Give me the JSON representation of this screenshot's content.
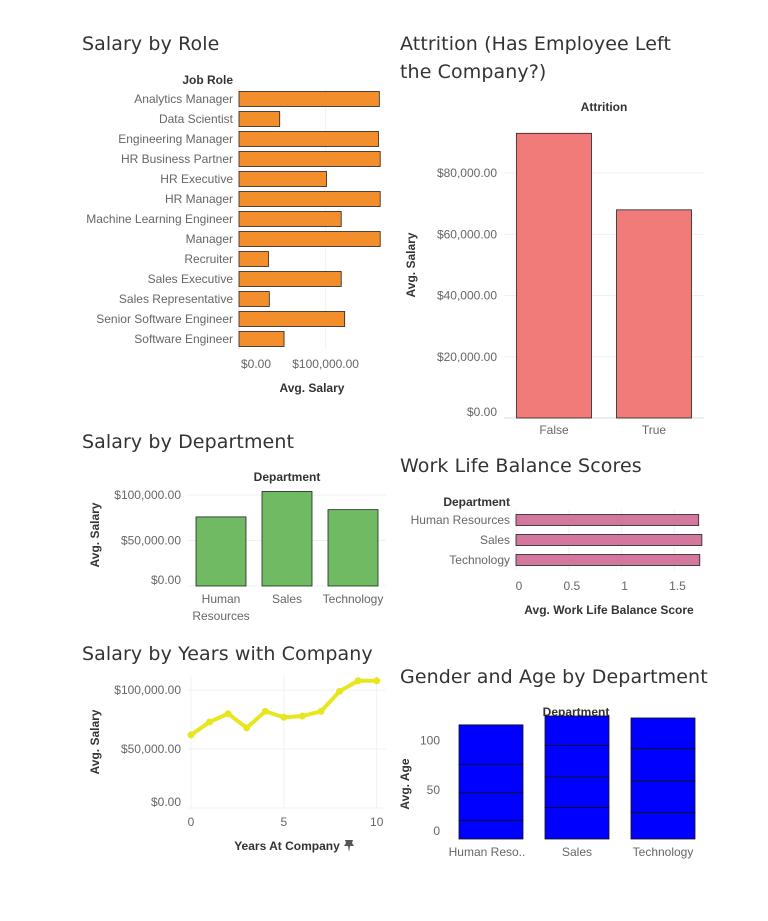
{
  "chart_data": [
    {
      "id": "role",
      "type": "bar",
      "orientation": "horizontal",
      "title": "Salary by Role",
      "header": "Job Role",
      "xlabel": "Avg. Salary",
      "categories": [
        "Analytics Manager",
        "Data Scientist",
        "Engineering Manager",
        "HR Business Partner",
        "HR Executive",
        "HR Manager",
        "Machine Learning Engineer",
        "Manager",
        "Recruiter",
        "Sales Executive",
        "Sales Representative",
        "Senior Software Engineer",
        "Software Engineer"
      ],
      "values": [
        162000,
        47000,
        161000,
        163000,
        101000,
        163000,
        118000,
        163000,
        34000,
        118000,
        35000,
        122000,
        52000
      ],
      "xlim": [
        0,
        172000
      ],
      "ticks": [
        0,
        100000
      ],
      "tick_labels": [
        "$0.00",
        "$100,000.00"
      ],
      "color": "#f28e2b"
    },
    {
      "id": "attrition",
      "type": "bar",
      "title": "Attrition (Has Employee Left the Company?)",
      "header": "Attrition",
      "ylabel": "Avg. Salary",
      "categories": [
        "False",
        "True"
      ],
      "values": [
        93000,
        68000
      ],
      "ylim": [
        0,
        98000
      ],
      "ticks": [
        0,
        20000,
        40000,
        60000,
        80000
      ],
      "tick_labels": [
        "$0.00",
        "$20,000.00",
        "$40,000.00",
        "$60,000.00",
        "$80,000.00"
      ],
      "color": "#f07b78"
    },
    {
      "id": "dept",
      "type": "bar",
      "title": "Salary by Department",
      "header": "Department",
      "ylabel": "Avg. Salary",
      "categories": [
        "Human Resources",
        "Sales",
        "Technology"
      ],
      "values": [
        76000,
        104000,
        84000
      ],
      "ylim": [
        0,
        110000
      ],
      "ticks": [
        0,
        50000,
        100000
      ],
      "tick_labels": [
        "$0.00",
        "$50,000.00",
        "$100,000.00"
      ],
      "color": "#6fba62"
    },
    {
      "id": "wlb",
      "type": "bar",
      "orientation": "horizontal",
      "title": "Work Life Balance Scores",
      "header": "Department",
      "xlabel": "Avg. Work Life Balance Score",
      "categories": [
        "Human Resources",
        "Sales",
        "Technology"
      ],
      "values": [
        1.73,
        1.76,
        1.74
      ],
      "xlim": [
        0,
        1.78
      ],
      "ticks": [
        0,
        0.5,
        1,
        1.5
      ],
      "tick_labels": [
        "0",
        "0.5",
        "1",
        "1.5"
      ],
      "color": "#d4779c"
    },
    {
      "id": "years",
      "type": "line",
      "title": "Salary by Years with Company",
      "ylabel": "Avg. Salary",
      "xlabel": "Years At Company",
      "x": [
        0,
        1,
        2,
        3,
        4,
        5,
        6,
        7,
        8,
        9,
        10
      ],
      "values": [
        62000,
        73000,
        80000,
        68000,
        82000,
        77000,
        78000,
        82000,
        99000,
        108000,
        108000
      ],
      "xlim": [
        0,
        10.5
      ],
      "ylim": [
        0,
        112000
      ],
      "xticks": [
        0,
        5,
        10
      ],
      "yticks": [
        0,
        50000,
        100000
      ],
      "ytick_labels": [
        "$0.00",
        "$50,000.00",
        "$100,000.00"
      ],
      "color": "#e8e61f"
    },
    {
      "id": "gender",
      "type": "bar",
      "stacked": true,
      "title": "Gender and Age by Department",
      "header": "Department",
      "ylabel": "Avg. Age",
      "categories": [
        "Human Reso..",
        "Sales",
        "Technology"
      ],
      "segments": [
        [
          19,
          28,
          29,
          40
        ],
        [
          32,
          31,
          32,
          30
        ],
        [
          27,
          32,
          33,
          31
        ]
      ],
      "ylim": [
        0,
        125
      ],
      "ticks": [
        0,
        50,
        100
      ],
      "tick_labels": [
        "0",
        "50",
        "100"
      ],
      "color": "#0000ff"
    }
  ]
}
